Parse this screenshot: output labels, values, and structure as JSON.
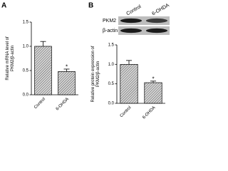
{
  "chart_data": [
    {
      "type": "bar",
      "panel_label": "A",
      "ylabel": [
        "Relative mRNA level of",
        "PKM2/β-actin"
      ],
      "categories": [
        "Control",
        "6-OHDA"
      ],
      "values": [
        1.0,
        0.48
      ],
      "errors": [
        0.1,
        0.05
      ],
      "significance": [
        null,
        "*"
      ],
      "color": "#8c8c8c",
      "ylim": [
        0,
        1.5
      ],
      "yticks": [
        {
          "value": 0,
          "label": "0.0"
        },
        {
          "value": 0.5,
          "label": "0.5"
        },
        {
          "value": 1,
          "label": "1.0"
        },
        {
          "value": 1.5,
          "label": "1.5"
        }
      ]
    },
    {
      "type": "bar",
      "panel_label": "B",
      "ylabel": [
        "Relative protein expression of",
        "PKM2/β-actin"
      ],
      "categories": [
        "Control",
        "6-OHDA"
      ],
      "values": [
        1.0,
        0.53
      ],
      "errors": [
        0.1,
        0.04
      ],
      "significance": [
        null,
        "*"
      ],
      "color": "#8c8c8c",
      "ylim": [
        0,
        1.5
      ],
      "yticks": [
        {
          "value": 0,
          "label": "0.0"
        },
        {
          "value": 0.5,
          "label": "0.5"
        },
        {
          "value": 1,
          "label": "1.0"
        },
        {
          "value": 1.5,
          "label": "1.5"
        }
      ],
      "blot": {
        "lanes": [
          "Control",
          "6-OHDA"
        ],
        "rows": [
          "PKM2",
          "β-actin"
        ]
      }
    }
  ]
}
